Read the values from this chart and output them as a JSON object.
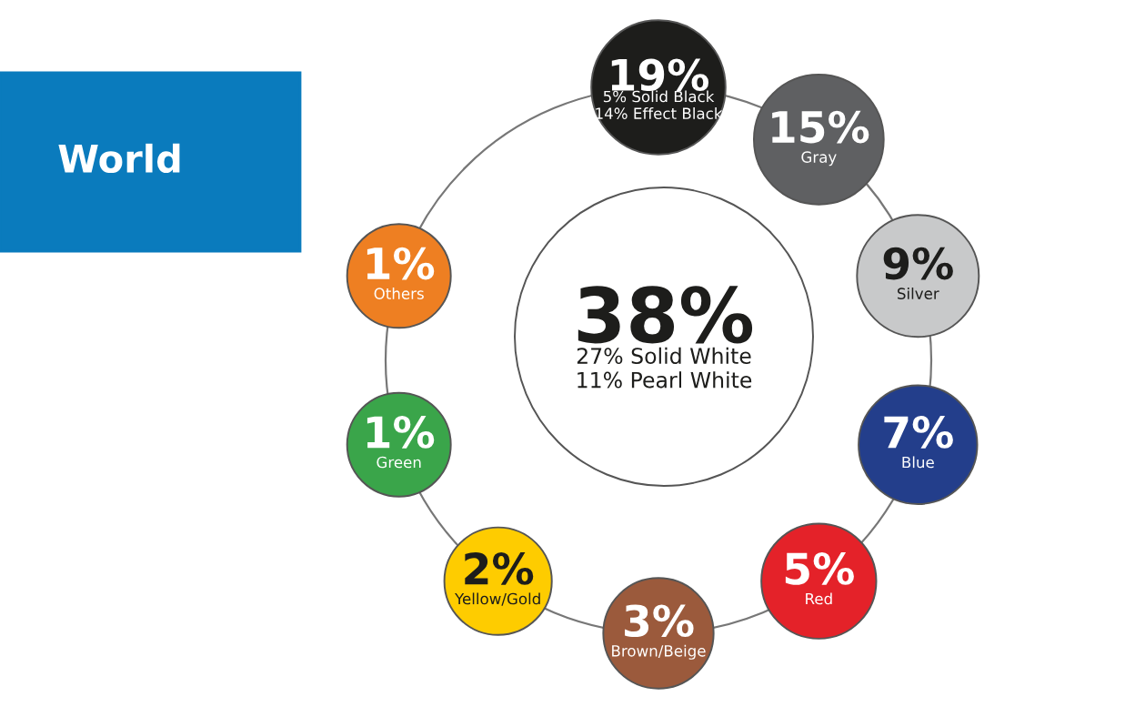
{
  "chart_data": {
    "type": "other",
    "title": "World",
    "categories": [
      "27% Solid White\n11% Pearl White",
      "5% Solid Black\n14% Effect Black",
      "Gray",
      "Silver",
      "Blue",
      "Red",
      "Brown/Beige",
      "Yellow/Gold",
      "Green",
      "Others"
    ],
    "values": [
      38,
      19,
      15,
      9,
      7,
      5,
      3,
      2,
      1,
      1
    ],
    "value_labels": [
      "38%",
      "19%",
      "15%",
      "9%",
      "7%",
      "5%",
      "3%",
      "2%",
      "1%",
      "1%"
    ],
    "colors": [
      "#ffffff",
      "#1d1d1b",
      "#5f6062",
      "#c8c9ca",
      "#233e8b",
      "#e42229",
      "#9b5a3c",
      "#fecc00",
      "#3aa54a",
      "#ee7f22"
    ]
  }
}
